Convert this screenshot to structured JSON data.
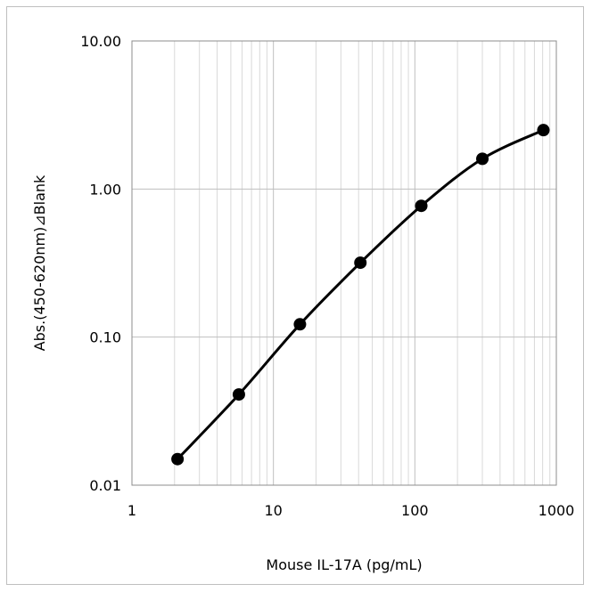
{
  "chart_data": {
    "type": "line",
    "xlabel": "Mouse IL-17A (pg/mL)",
    "ylabel": "Abs.(450-620nm)⊿Blank",
    "x_scale": "log",
    "y_scale": "log",
    "xlim": [
      1,
      1000
    ],
    "ylim": [
      0.01,
      10
    ],
    "x_tick_labels": [
      "1",
      "10",
      "100",
      "1000"
    ],
    "y_tick_labels": [
      "0.01",
      "0.10",
      "1.00",
      "10.00"
    ],
    "grid": true,
    "series": [
      {
        "x": [
          2.1,
          5.7,
          15.4,
          41.2,
          111,
          300,
          810
        ],
        "y": [
          0.015,
          0.041,
          0.122,
          0.318,
          0.77,
          1.6,
          2.5
        ],
        "line_color": "#000000",
        "marker": "circle"
      }
    ]
  }
}
